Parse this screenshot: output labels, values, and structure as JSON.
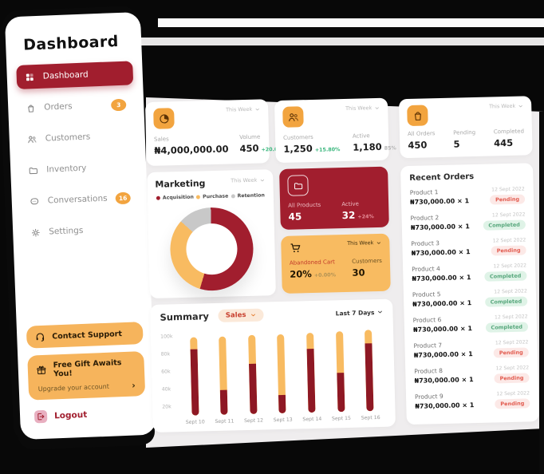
{
  "sidebar": {
    "title": "Dashboard",
    "items": [
      {
        "label": "Dashboard",
        "icon": "grid",
        "active": true
      },
      {
        "label": "Orders",
        "icon": "bag",
        "badge": "3"
      },
      {
        "label": "Customers",
        "icon": "users"
      },
      {
        "label": "Inventory",
        "icon": "folder"
      },
      {
        "label": "Conversations",
        "icon": "chat",
        "badge": "16"
      },
      {
        "label": "Settings",
        "icon": "gear"
      }
    ],
    "support_button": "Contact Support",
    "gift_title": "Free Gift Awaits You!",
    "gift_subtitle": "Upgrade your account",
    "gift_arrow": "›",
    "logout_label": "Logout"
  },
  "stat_cards": {
    "sales": {
      "icon": "pie",
      "period": "This Week",
      "stats": {
        "label1": "Sales",
        "value1": "₦4,000,000.00",
        "label2": "Volume",
        "value2": "450",
        "delta2": "+20.00%"
      }
    },
    "customers": {
      "icon": "users",
      "period": "This Week",
      "stats": {
        "label1": "Customers",
        "value1": "1,250",
        "delta1": "+15.80%",
        "label2": "Active",
        "value2": "1,180",
        "delta2": "85%"
      }
    },
    "orders": {
      "icon": "bag",
      "period": "This Week",
      "stats": {
        "label1": "All Orders",
        "value1": "450",
        "label2": "Pending",
        "value2": "5",
        "label3": "Completed",
        "value3": "445"
      }
    },
    "products": {
      "icon": "folder",
      "stats": {
        "label1": "All Products",
        "value1": "45",
        "label2": "Active",
        "value2": "32",
        "delta2": "+24%"
      }
    },
    "cart": {
      "icon": "cart",
      "period": "This Week",
      "stats": {
        "label1": "Abandoned Cart",
        "value1": "20%",
        "delta1": "+0.00%",
        "label2": "Customers",
        "value2": "30"
      }
    }
  },
  "marketing": {
    "title": "Marketing",
    "period": "This Week"
  },
  "summary": {
    "title": "Summary",
    "filter_label": "Sales",
    "period": "Last 7 Days"
  },
  "chart_data": [
    {
      "type": "pie",
      "variant": "donut",
      "title": "Marketing",
      "legend": [
        "Acquisition",
        "Purchase",
        "Retention"
      ],
      "values_pct": [
        55,
        32,
        13
      ],
      "colors": [
        "#A11E2E",
        "#F8BB61",
        "#C8C8C8"
      ],
      "legend_position": "top"
    },
    {
      "type": "bar",
      "variant": "stacked-capsule",
      "title": "Summary",
      "categories": [
        "Sept 10",
        "Sept 11",
        "Sept 12",
        "Sept 13",
        "Sept 14",
        "Sept 15",
        "Sept 16"
      ],
      "series": [
        {
          "name": "Total",
          "color": "#F8BB61",
          "values": [
            104,
            104,
            105,
            105,
            106,
            107,
            108
          ]
        },
        {
          "name": "Completed",
          "color": "#8E1824",
          "values": [
            90,
            43,
            72,
            36,
            88,
            60,
            92
          ]
        }
      ],
      "unit": "k",
      "ylim": [
        10,
        110
      ],
      "yticks": [
        "100k",
        "80k",
        "60k",
        "40k",
        "20k"
      ],
      "grid": false,
      "legend_position": "none"
    }
  ],
  "recent_orders": {
    "title": "Recent Orders",
    "orders": [
      {
        "name": "Product 1",
        "price": "₦730,000.00 × 1",
        "date": "12 Sept 2022",
        "status": "Pending"
      },
      {
        "name": "Product 2",
        "price": "₦730,000.00 × 1",
        "date": "12 Sept 2022",
        "status": "Completed"
      },
      {
        "name": "Product 3",
        "price": "₦730,000.00 × 1",
        "date": "12 Sept 2022",
        "status": "Pending"
      },
      {
        "name": "Product 4",
        "price": "₦730,000.00 × 1",
        "date": "12 Sept 2022",
        "status": "Completed"
      },
      {
        "name": "Product 5",
        "price": "₦730,000.00 × 1",
        "date": "12 Sept 2022",
        "status": "Completed"
      },
      {
        "name": "Product 6",
        "price": "₦730,000.00 × 1",
        "date": "12 Sept 2022",
        "status": "Completed"
      },
      {
        "name": "Product 7",
        "price": "₦730,000.00 × 1",
        "date": "12 Sept 2022",
        "status": "Pending"
      },
      {
        "name": "Product 8",
        "price": "₦730,000.00 × 1",
        "date": "12 Sept 2022",
        "status": "Pending"
      },
      {
        "name": "Product 9",
        "price": "₦730,000.00 × 1",
        "date": "12 Sept 2022",
        "status": "Pending"
      }
    ]
  },
  "colors": {
    "maroon": "#A11E2E",
    "bar_red": "#8E1824",
    "orange_icon": "#F2A43F",
    "amber": "#F8BB61",
    "green": "#3BB77E",
    "bg_gray": "#EFEDEE",
    "pending_bg": "#FCE9E7",
    "pending_text": "#E25C50",
    "completed_bg": "#DFF3E7",
    "completed_text": "#57A77C"
  }
}
